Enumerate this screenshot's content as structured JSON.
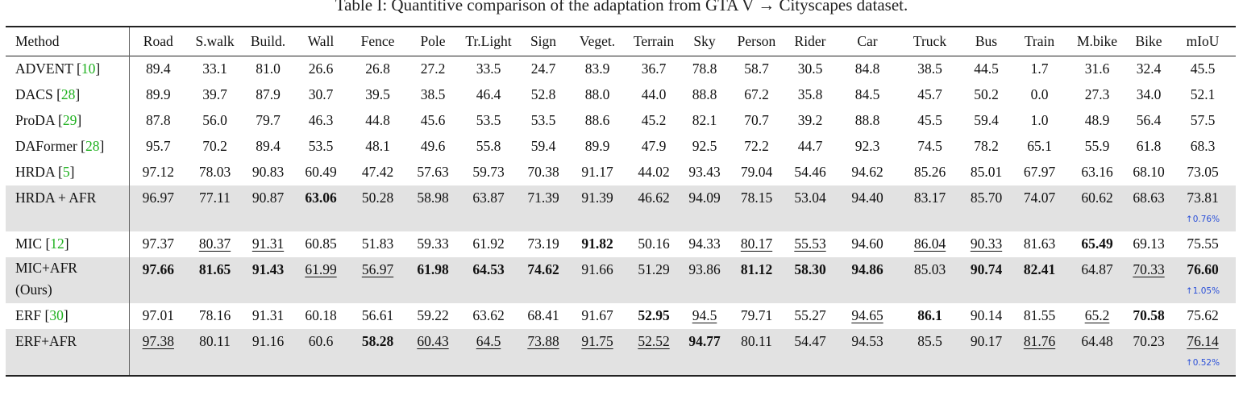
{
  "caption": "Table I: Quantitive comparison of the adaptation from GTA V → Cityscapes dataset.",
  "columns": [
    "Method",
    "Road",
    "S.walk",
    "Build.",
    "Wall",
    "Fence",
    "Pole",
    "Tr.Light",
    "Sign",
    "Veget.",
    "Terrain",
    "Sky",
    "Person",
    "Rider",
    "Car",
    "Truck",
    "Bus",
    "Train",
    "M.bike",
    "Bike",
    "mIoU"
  ],
  "rows": [
    {
      "method": "ADVENT",
      "ref": "10",
      "values": [
        "89.4",
        "33.1",
        "81.0",
        "26.6",
        "26.8",
        "27.2",
        "33.5",
        "24.7",
        "83.9",
        "36.7",
        "78.8",
        "58.7",
        "30.5",
        "84.8",
        "38.5",
        "44.5",
        "1.7",
        "31.6",
        "32.4",
        "45.5"
      ]
    },
    {
      "method": "DACS",
      "ref": "28",
      "values": [
        "89.9",
        "39.7",
        "87.9",
        "30.7",
        "39.5",
        "38.5",
        "46.4",
        "52.8",
        "88.0",
        "44.0",
        "88.8",
        "67.2",
        "35.8",
        "84.5",
        "45.7",
        "50.2",
        "0.0",
        "27.3",
        "34.0",
        "52.1"
      ]
    },
    {
      "method": "ProDA",
      "ref": "29",
      "values": [
        "87.8",
        "56.0",
        "79.7",
        "46.3",
        "44.8",
        "45.6",
        "53.5",
        "53.5",
        "88.6",
        "45.2",
        "82.1",
        "70.7",
        "39.2",
        "88.8",
        "45.5",
        "59.4",
        "1.0",
        "48.9",
        "56.4",
        "57.5"
      ]
    },
    {
      "method": "DAFormer",
      "ref": "28",
      "values": [
        "95.7",
        "70.2",
        "89.4",
        "53.5",
        "48.1",
        "49.6",
        "55.8",
        "59.4",
        "89.9",
        "47.9",
        "92.5",
        "72.2",
        "44.7",
        "92.3",
        "74.5",
        "78.2",
        "65.1",
        "55.9",
        "61.8",
        "68.3"
      ]
    },
    {
      "method": "HRDA",
      "ref": "5",
      "values": [
        "97.12",
        "78.03",
        "90.83",
        "60.49",
        "47.42",
        "57.63",
        "59.73",
        "70.38",
        "91.17",
        "44.02",
        "93.43",
        "79.04",
        "54.46",
        "94.62",
        "85.26",
        "85.01",
        "67.97",
        "63.16",
        "68.10",
        "73.05"
      ]
    },
    {
      "method": "HRDA + AFR",
      "ref": "",
      "shaded": true,
      "improvement": "↑0.76%",
      "values": [
        "96.97",
        "77.11",
        "90.87",
        "63.06",
        "50.28",
        "58.98",
        "63.87",
        "71.39",
        "91.39",
        "46.62",
        "94.09",
        "78.15",
        "53.04",
        "94.40",
        "83.17",
        "85.70",
        "74.07",
        "60.62",
        "68.63",
        "73.81"
      ],
      "bold": [
        3
      ],
      "underline": []
    },
    {
      "method": "MIC",
      "ref": "12",
      "values": [
        "97.37",
        "80.37",
        "91.31",
        "60.85",
        "51.83",
        "59.33",
        "61.92",
        "73.19",
        "91.82",
        "50.16",
        "94.33",
        "80.17",
        "55.53",
        "94.60",
        "86.04",
        "90.33",
        "81.63",
        "65.49",
        "69.13",
        "75.55"
      ],
      "bold": [
        8,
        17
      ],
      "underline": [
        1,
        2,
        11,
        12,
        14,
        15
      ]
    },
    {
      "method": "MIC+AFR",
      "method_line2": "(Ours)",
      "ref": "",
      "shaded": true,
      "improvement": "↑1.05%",
      "values": [
        "97.66",
        "81.65",
        "91.43",
        "61.99",
        "56.97",
        "61.98",
        "64.53",
        "74.62",
        "91.66",
        "51.29",
        "93.86",
        "81.12",
        "58.30",
        "94.86",
        "85.03",
        "90.74",
        "82.41",
        "64.87",
        "70.33",
        "76.60"
      ],
      "bold": [
        0,
        1,
        2,
        5,
        6,
        7,
        11,
        12,
        13,
        15,
        16,
        19
      ],
      "underline": [
        3,
        4,
        18
      ]
    },
    {
      "method": "ERF",
      "ref": "30",
      "values": [
        "97.01",
        "78.16",
        "91.31",
        "60.18",
        "56.61",
        "59.22",
        "63.62",
        "68.41",
        "91.67",
        "52.95",
        "94.5",
        "79.71",
        "55.27",
        "94.65",
        "86.1",
        "90.14",
        "81.55",
        "65.2",
        "70.58",
        "75.62"
      ],
      "bold": [
        9,
        14,
        18
      ],
      "underline": [
        10,
        13,
        17
      ]
    },
    {
      "method": "ERF+AFR",
      "ref": "",
      "shaded": true,
      "improvement": "↑0.52%",
      "values": [
        "97.38",
        "80.11",
        "91.16",
        "60.6",
        "58.28",
        "60.43",
        "64.5",
        "73.88",
        "91.75",
        "52.52",
        "94.77",
        "80.11",
        "54.47",
        "94.53",
        "85.5",
        "90.17",
        "81.76",
        "64.48",
        "70.23",
        "76.14"
      ],
      "bold": [
        4,
        10
      ],
      "underline": [
        0,
        5,
        6,
        7,
        8,
        9,
        16,
        19
      ]
    }
  ]
}
